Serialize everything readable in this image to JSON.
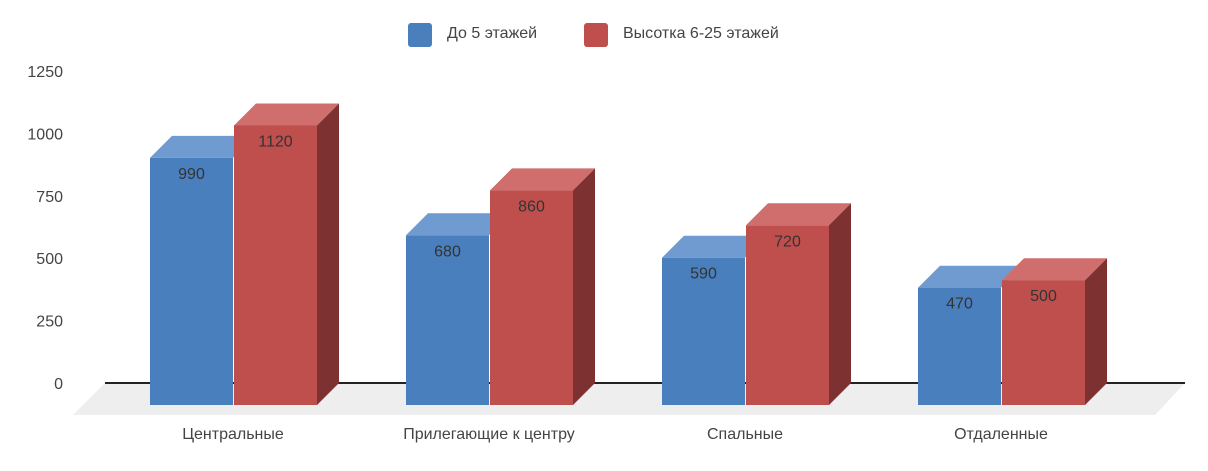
{
  "chart_data": {
    "type": "bar",
    "categories": [
      "Центральные",
      "Прилегающие к центру",
      "Спальные",
      "Отдаленные"
    ],
    "series": [
      {
        "name": "До 5 этажей",
        "values": [
          990,
          680,
          590,
          470
        ],
        "color": "#4a7fbe",
        "top_color": "#6f9bd1"
      },
      {
        "name": "Высотка 6-25 этажей",
        "values": [
          1120,
          860,
          720,
          500
        ],
        "color": "#be4f4d",
        "top_color": "#cf6e6c",
        "side_color": "#7d3231"
      }
    ],
    "y_ticks": [
      "0",
      "250",
      "500",
      "750",
      "1000",
      "1250"
    ],
    "ylim": [
      0,
      1250
    ],
    "legend_position": "top-center",
    "title": "",
    "xlabel": "",
    "ylabel": "",
    "style": "3d-column",
    "floor_color": "#eeeeee"
  }
}
